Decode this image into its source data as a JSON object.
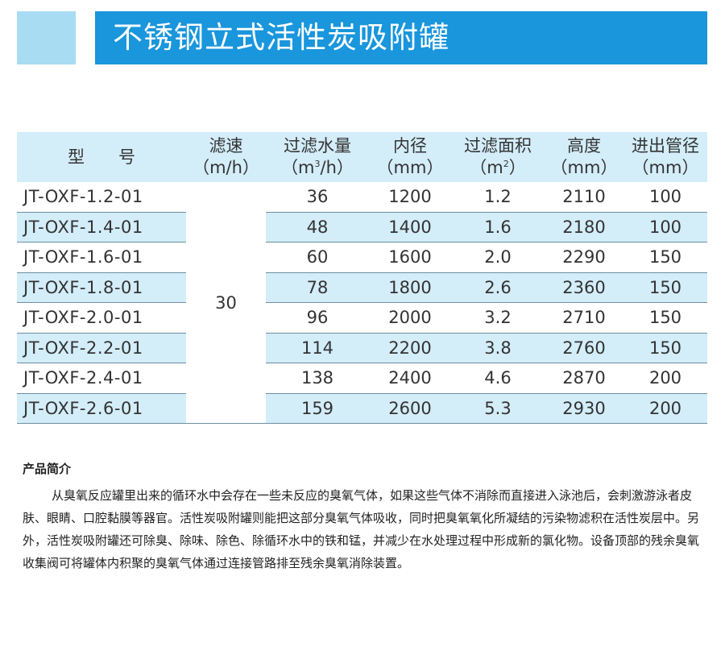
{
  "header": {
    "title": "不锈钢立式活性炭吸附罐"
  },
  "table": {
    "headers": [
      {
        "line1": "型　　号",
        "line2": ""
      },
      {
        "line1": "滤速",
        "line2": "（m/h）"
      },
      {
        "line1": "过滤水量",
        "line2_pre": "（m",
        "line2_sup": "3",
        "line2_post": "/h）"
      },
      {
        "line1": "内径",
        "line2": "（mm）"
      },
      {
        "line1": "过滤面积",
        "line2_pre": "（m",
        "line2_sup": "2",
        "line2_post": "）"
      },
      {
        "line1": "高度",
        "line2": "（mm）"
      },
      {
        "line1": "进出管径",
        "line2": "（mm）"
      }
    ],
    "filter_rate": "30",
    "rows": [
      {
        "model": "JT-OXF-1.2-01",
        "flow": "36",
        "diameter": "1200",
        "area": "1.2",
        "height": "2110",
        "pipe": "100"
      },
      {
        "model": "JT-OXF-1.4-01",
        "flow": "48",
        "diameter": "1400",
        "area": "1.6",
        "height": "2180",
        "pipe": "100"
      },
      {
        "model": "JT-OXF-1.6-01",
        "flow": "60",
        "diameter": "1600",
        "area": "2.0",
        "height": "2290",
        "pipe": "150"
      },
      {
        "model": "JT-OXF-1.8-01",
        "flow": "78",
        "diameter": "1800",
        "area": "2.6",
        "height": "2360",
        "pipe": "150"
      },
      {
        "model": "JT-OXF-2.0-01",
        "flow": "96",
        "diameter": "2000",
        "area": "3.2",
        "height": "2710",
        "pipe": "150"
      },
      {
        "model": "JT-OXF-2.2-01",
        "flow": "114",
        "diameter": "2200",
        "area": "3.8",
        "height": "2760",
        "pipe": "150"
      },
      {
        "model": "JT-OXF-2.4-01",
        "flow": "138",
        "diameter": "2400",
        "area": "4.6",
        "height": "2870",
        "pipe": "200"
      },
      {
        "model": "JT-OXF-2.6-01",
        "flow": "159",
        "diameter": "2600",
        "area": "5.3",
        "height": "2930",
        "pipe": "200"
      }
    ]
  },
  "intro": {
    "heading": "产品简介",
    "body": "从臭氧反应罐里出来的循环水中会存在一些未反应的臭氧气体，如果这些气体不消除而直接进入泳池后，会刺激游泳者皮肤、眼睛、口腔黏膜等器官。活性炭吸附罐则能把这部分臭氧气体吸收，同时把臭氧氧化所凝结的污染物滤积在活性炭层中。另外，活性炭吸附罐还可除臭、除味、除色、除循环水中的铁和锰，并减少在水处理过程中形成新的氯化物。设备顶部的残余臭氧收集阀可将罐体内积聚的臭氧气体通过连接管路排至残余臭氧消除装置。"
  },
  "colors": {
    "title_bar": "#1996dc",
    "accent_block": "#a8dcf3",
    "table_header_bg": "#d3edf9",
    "row_alt_bg": "#d3edf9",
    "row_border": "#6f8fa1"
  }
}
